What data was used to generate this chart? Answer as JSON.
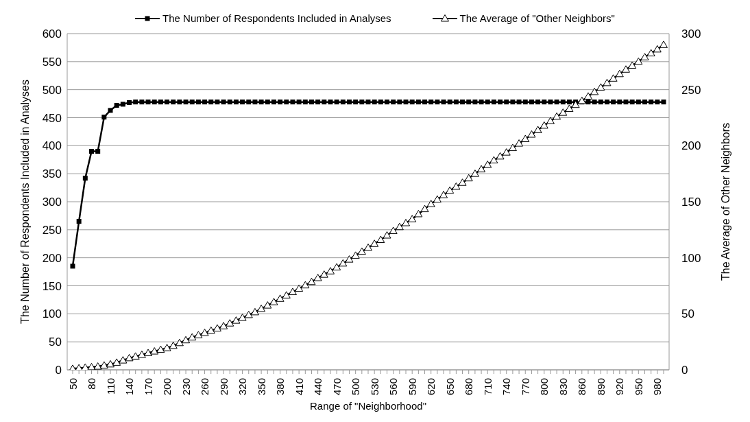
{
  "chart_data": {
    "type": "line",
    "xlabel": "Range of \"Neighborhood\"",
    "ylabel": "The Number of Respondents Included in Analyses",
    "y2label": "The Average of Other Neighbors",
    "categories": [
      "50",
      null,
      null,
      "80",
      null,
      null,
      "110",
      null,
      null,
      "140",
      null,
      null,
      "170",
      null,
      null,
      "200",
      null,
      null,
      "230",
      null,
      null,
      "260",
      null,
      null,
      "290",
      null,
      null,
      "320",
      null,
      null,
      "350",
      null,
      null,
      "380",
      null,
      null,
      "410",
      null,
      null,
      "440",
      null,
      null,
      "470",
      null,
      null,
      "500",
      null,
      null,
      "530",
      null,
      null,
      "560",
      null,
      null,
      "590",
      null,
      null,
      "620",
      null,
      null,
      "650",
      null,
      null,
      "680",
      null,
      null,
      "710",
      null,
      null,
      "740",
      null,
      null,
      "770",
      null,
      null,
      "800",
      null,
      null,
      "830",
      null,
      null,
      "860",
      null,
      null,
      "890",
      null,
      null,
      "920",
      null,
      null,
      "950",
      null,
      null,
      "980",
      null
    ],
    "series": [
      {
        "name": "The Number of Respondents Included in Analyses",
        "color": "#000000",
        "marker": "square",
        "values": [
          185,
          265,
          342,
          390,
          390,
          451,
          463,
          472,
          474,
          477,
          478,
          478,
          478,
          478,
          478,
          478,
          478,
          478,
          478,
          478,
          478,
          478,
          478,
          478,
          478,
          478,
          478,
          478,
          478,
          478,
          478,
          478,
          478,
          478,
          478,
          478,
          478,
          478,
          478,
          478,
          478,
          478,
          478,
          478,
          478,
          478,
          478,
          478,
          478,
          478,
          478,
          478,
          478,
          478,
          478,
          478,
          478,
          478,
          478,
          478,
          478,
          478,
          478,
          478,
          478,
          478,
          478,
          478,
          478,
          478,
          478,
          478,
          478,
          478,
          478,
          478,
          478,
          478,
          478,
          478,
          478,
          478,
          478,
          478,
          478,
          478,
          478,
          478,
          478,
          478,
          478,
          478,
          478,
          478,
          478
        ]
      },
      {
        "name": "The Average of \"Other Neighbors\"",
        "color": "#000000",
        "marker": "triangle",
        "axis": "y2",
        "values": [
          1,
          1.5,
          2,
          2.5,
          3,
          4,
          5,
          6.5,
          8.5,
          10.5,
          12,
          13.5,
          15,
          16.5,
          18,
          19.5,
          21.5,
          24,
          26.5,
          29,
          31,
          33,
          35,
          37,
          39,
          41.5,
          44,
          46.5,
          49,
          51.5,
          54.5,
          57.5,
          60.5,
          63.5,
          66.5,
          69.5,
          72.5,
          75.5,
          78.5,
          82,
          85,
          88,
          91.5,
          95,
          98.5,
          102,
          105.5,
          109,
          112.5,
          116,
          120,
          124,
          127.5,
          131,
          134.5,
          139,
          143.5,
          148,
          152,
          156,
          160,
          163.5,
          167,
          171,
          175,
          179,
          183,
          187,
          190.5,
          194,
          198,
          202,
          206,
          210,
          214,
          218,
          222,
          226,
          229.5,
          233,
          236.5,
          240,
          244,
          248,
          252,
          256,
          260,
          264,
          268,
          271.5,
          275,
          279,
          282.5,
          286,
          290
        ]
      }
    ],
    "ylim": [
      0,
      600
    ],
    "yticks": [
      0,
      50,
      100,
      150,
      200,
      250,
      300,
      350,
      400,
      450,
      500,
      550,
      600
    ],
    "y2lim": [
      0,
      300
    ],
    "y2ticks": [
      0,
      50,
      100,
      150,
      200,
      250,
      300
    ],
    "grid": "y",
    "legend": "top"
  }
}
